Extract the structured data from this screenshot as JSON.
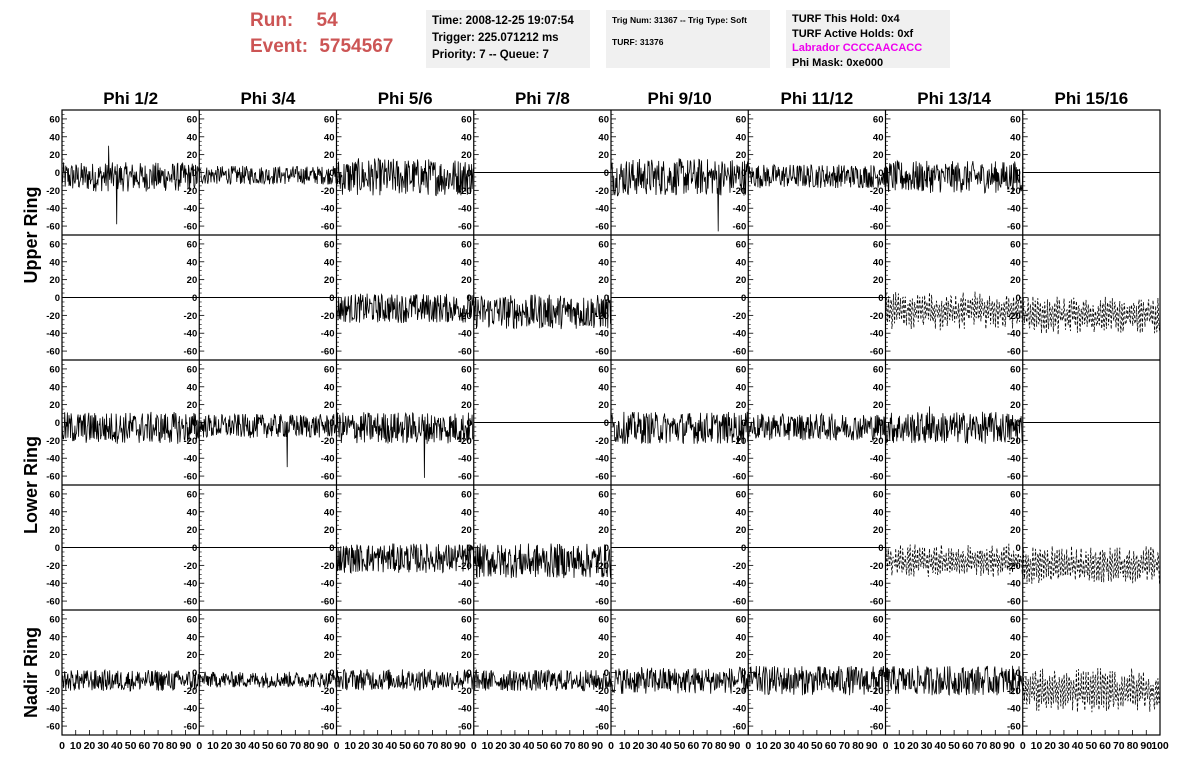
{
  "header": {
    "run_label": "Run:",
    "run_value": "54",
    "event_label": "Event:",
    "event_value": "5754567",
    "label_color": "#cc5555",
    "time_line": "Time: 2008-12-25 19:07:54",
    "trigger_line": "Trigger: 225.071212 ms",
    "priority_line": "Priority: 7 -- Queue: 7",
    "trig_line": "Trig Num: 31367 -- Trig Type: Soft",
    "turf_line": "TURF: 31376",
    "turf_hold_line": "TURF This Hold: 0x4",
    "turf_active_line": "TURF Active Holds: 0xf",
    "labrador_line": "Labrador CCCCAACACC",
    "labrador_color": "#ee00ee",
    "phi_mask_line": "Phi Mask: 0xe000"
  },
  "chart_data": {
    "type": "line",
    "columns": [
      "Phi 1/2",
      "Phi 3/4",
      "Phi 5/6",
      "Phi 7/8",
      "Phi 9/10",
      "Phi 11/12",
      "Phi 13/14",
      "Phi 15/16"
    ],
    "rings": [
      "Upper Ring",
      "Lower Ring",
      "Nadir Ring"
    ],
    "ylim": [
      -70,
      70
    ],
    "y_ticks": [
      "60",
      "40",
      "20",
      "0",
      "-20",
      "-40",
      "-60"
    ],
    "xlim": [
      0,
      100
    ],
    "x_tick_labels": [
      "0",
      "10",
      "20",
      "30",
      "40",
      "50",
      "60",
      "70",
      "80",
      "90",
      "100"
    ],
    "line_color": "#000000",
    "rows": [
      {
        "ring": "Upper Ring",
        "panels": [
          {
            "style": "solid",
            "mean": -5,
            "amp": 11,
            "spikes": [
              [
                34,
                30
              ],
              [
                40,
                -58
              ]
            ]
          },
          {
            "style": "solid",
            "mean": -3,
            "amp": 7,
            "spikes": []
          },
          {
            "style": "solid",
            "mean": -5,
            "amp": 14,
            "spikes": []
          },
          {
            "style": "flat",
            "mean": 0,
            "amp": 0,
            "spikes": []
          },
          {
            "style": "solid",
            "mean": -5,
            "amp": 14,
            "spikes": [
              [
                78,
                -66
              ]
            ]
          },
          {
            "style": "solid",
            "mean": -4,
            "amp": 9,
            "spikes": []
          },
          {
            "style": "solid",
            "mean": -5,
            "amp": 12,
            "spikes": []
          },
          {
            "style": "flat",
            "mean": 0,
            "amp": 0,
            "spikes": []
          }
        ]
      },
      {
        "ring": "Upper Ring",
        "panels": [
          {
            "style": "flat",
            "mean": 0,
            "amp": 0,
            "spikes": []
          },
          {
            "style": "flat",
            "mean": 0,
            "amp": 0,
            "spikes": []
          },
          {
            "style": "solid",
            "mean": -12,
            "amp": 11,
            "spikes": []
          },
          {
            "style": "solid",
            "mean": -16,
            "amp": 13,
            "spikes": []
          },
          {
            "style": "flat",
            "mean": 0,
            "amp": 0,
            "spikes": []
          },
          {
            "style": "flat",
            "mean": 0,
            "amp": 0,
            "spikes": []
          },
          {
            "style": "dashed",
            "mean": -15,
            "amp": 17,
            "spikes": []
          },
          {
            "style": "dashed",
            "mean": -20,
            "amp": 17,
            "spikes": []
          }
        ]
      },
      {
        "ring": "Lower Ring",
        "panels": [
          {
            "style": "solid",
            "mean": -6,
            "amp": 12,
            "spikes": []
          },
          {
            "style": "solid",
            "mean": -4,
            "amp": 9,
            "spikes": [
              [
                64,
                -50
              ]
            ]
          },
          {
            "style": "solid",
            "mean": -6,
            "amp": 12,
            "spikes": [
              [
                64,
                -62
              ]
            ]
          },
          {
            "style": "flat",
            "mean": 0,
            "amp": 0,
            "spikes": []
          },
          {
            "style": "solid",
            "mean": -6,
            "amp": 12,
            "spikes": []
          },
          {
            "style": "solid",
            "mean": -5,
            "amp": 10,
            "spikes": []
          },
          {
            "style": "solid",
            "mean": -6,
            "amp": 12,
            "spikes": [
              [
                32,
                18
              ]
            ]
          },
          {
            "style": "flat",
            "mean": 0,
            "amp": 0,
            "spikes": []
          }
        ]
      },
      {
        "ring": "Lower Ring",
        "panels": [
          {
            "style": "flat",
            "mean": 0,
            "amp": 0,
            "spikes": []
          },
          {
            "style": "flat",
            "mean": 0,
            "amp": 0,
            "spikes": []
          },
          {
            "style": "solid",
            "mean": -12,
            "amp": 11,
            "spikes": []
          },
          {
            "style": "solid",
            "mean": -15,
            "amp": 13,
            "spikes": []
          },
          {
            "style": "flat",
            "mean": 0,
            "amp": 0,
            "spikes": []
          },
          {
            "style": "flat",
            "mean": 0,
            "amp": 0,
            "spikes": []
          },
          {
            "style": "dashed",
            "mean": -15,
            "amp": 15,
            "spikes": []
          },
          {
            "style": "dashed",
            "mean": -20,
            "amp": 17,
            "spikes": []
          }
        ]
      },
      {
        "ring": "Nadir Ring",
        "panels": [
          {
            "style": "solid",
            "mean": -9,
            "amp": 8,
            "spikes": []
          },
          {
            "style": "solid",
            "mean": -8,
            "amp": 6,
            "spikes": []
          },
          {
            "style": "solid",
            "mean": -8,
            "amp": 8,
            "spikes": []
          },
          {
            "style": "solid",
            "mean": -9,
            "amp": 8,
            "spikes": []
          },
          {
            "style": "solid",
            "mean": -9,
            "amp": 10,
            "spikes": []
          },
          {
            "style": "solid",
            "mean": -9,
            "amp": 11,
            "spikes": []
          },
          {
            "style": "solid",
            "mean": -9,
            "amp": 11,
            "spikes": []
          },
          {
            "style": "dashed",
            "mean": -20,
            "amp": 20,
            "spikes": []
          }
        ]
      }
    ]
  }
}
